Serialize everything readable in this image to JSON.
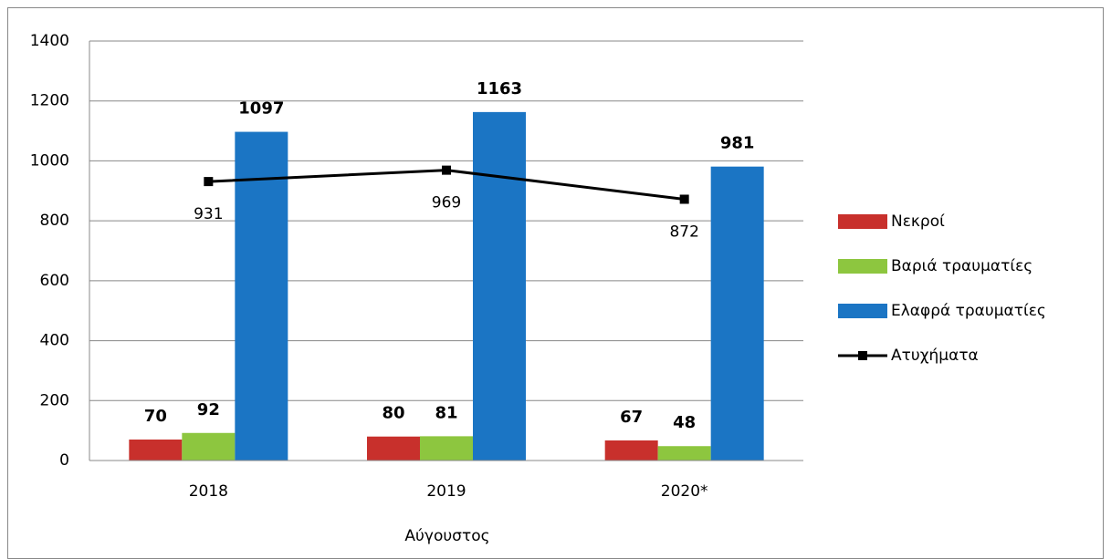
{
  "chart_data": {
    "type": "bar",
    "x_label": "Αύγουστος",
    "categories": [
      "2018",
      "2019",
      "2020*"
    ],
    "series": [
      {
        "name": "Νεκροί",
        "color": "#c8302c",
        "values": [
          70,
          80,
          67
        ]
      },
      {
        "name": "Βαριά τραυματίες",
        "color": "#8dc63f",
        "values": [
          92,
          81,
          48
        ]
      },
      {
        "name": "Ελαφρά τραυματίες",
        "color": "#1b75c4",
        "values": [
          1097,
          1163,
          981
        ]
      },
      {
        "name": "Ατυχήματα",
        "type": "line",
        "color": "#000000",
        "values": [
          931,
          969,
          872
        ]
      }
    ],
    "ylim": [
      0,
      1400
    ],
    "yticks": [
      0,
      200,
      400,
      600,
      800,
      1000,
      1200,
      1400
    ],
    "grid": true,
    "legend": "right"
  }
}
